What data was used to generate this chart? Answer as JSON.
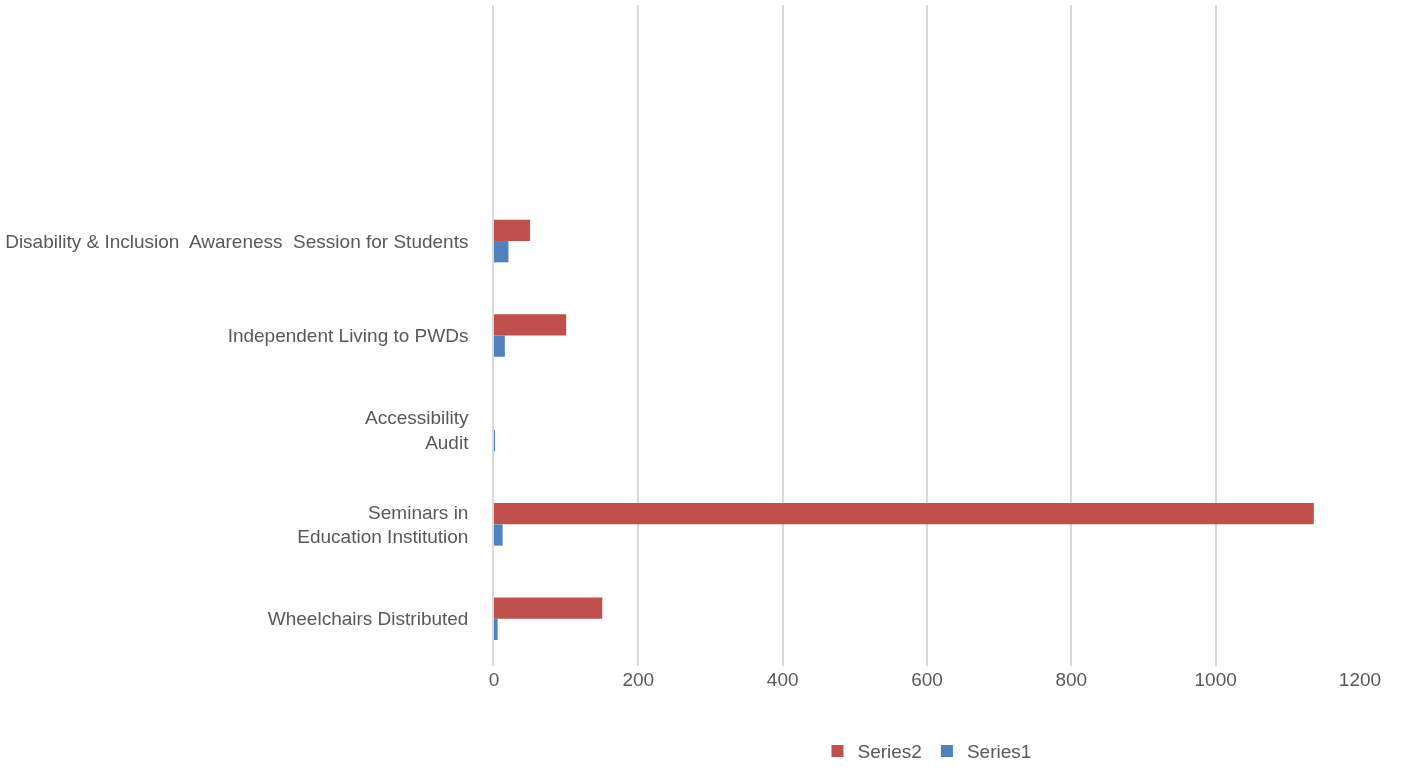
{
  "chart_data": {
    "type": "bar",
    "orientation": "horizontal",
    "categories": [
      null,
      null,
      "Disability & Inclusion  Awareness  Session for Students",
      "Independent Living to PWDs",
      "Accessibility\nAudit",
      "Seminars in\nEducation Institution",
      "Wheelchairs Distributed"
    ],
    "series": [
      {
        "name": "Series2",
        "color": "#c0504d",
        "values": [
          null,
          null,
          50,
          100,
          0,
          1136,
          150
        ]
      },
      {
        "name": "Series1",
        "color": "#4f81bd",
        "values": [
          null,
          null,
          20,
          15,
          1,
          12,
          5
        ]
      }
    ],
    "xlim": [
      0,
      1200
    ],
    "xticks": [
      0,
      200,
      400,
      600,
      800,
      1000,
      1200
    ],
    "grid": "x",
    "legend": "bottom"
  }
}
